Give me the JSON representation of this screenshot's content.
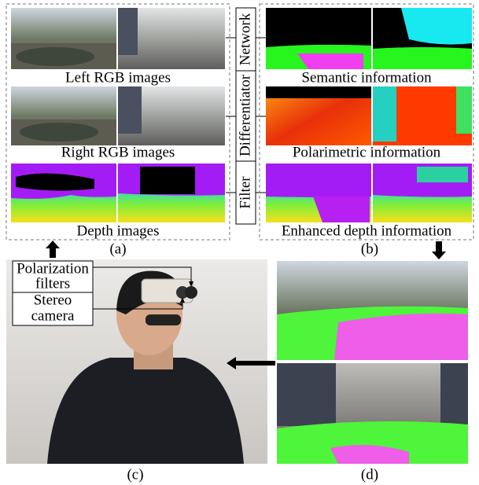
{
  "panel_a": {
    "rows": [
      {
        "label": "Left RGB images"
      },
      {
        "label": "Right RGB images"
      },
      {
        "label": "Depth images"
      }
    ],
    "caption": "(a)"
  },
  "modules": [
    "Network",
    "Differentiator",
    "Filter"
  ],
  "panel_b": {
    "rows": [
      {
        "label": "Semantic information"
      },
      {
        "label": "Polarimetric information"
      },
      {
        "label": "Enhanced depth information"
      }
    ],
    "caption": "(b)"
  },
  "panel_c": {
    "labels": [
      [
        "Polarization",
        "filters"
      ],
      [
        "Stereo",
        "camera"
      ]
    ],
    "caption": "(c)"
  },
  "panel_d": {
    "caption": "(d)"
  }
}
